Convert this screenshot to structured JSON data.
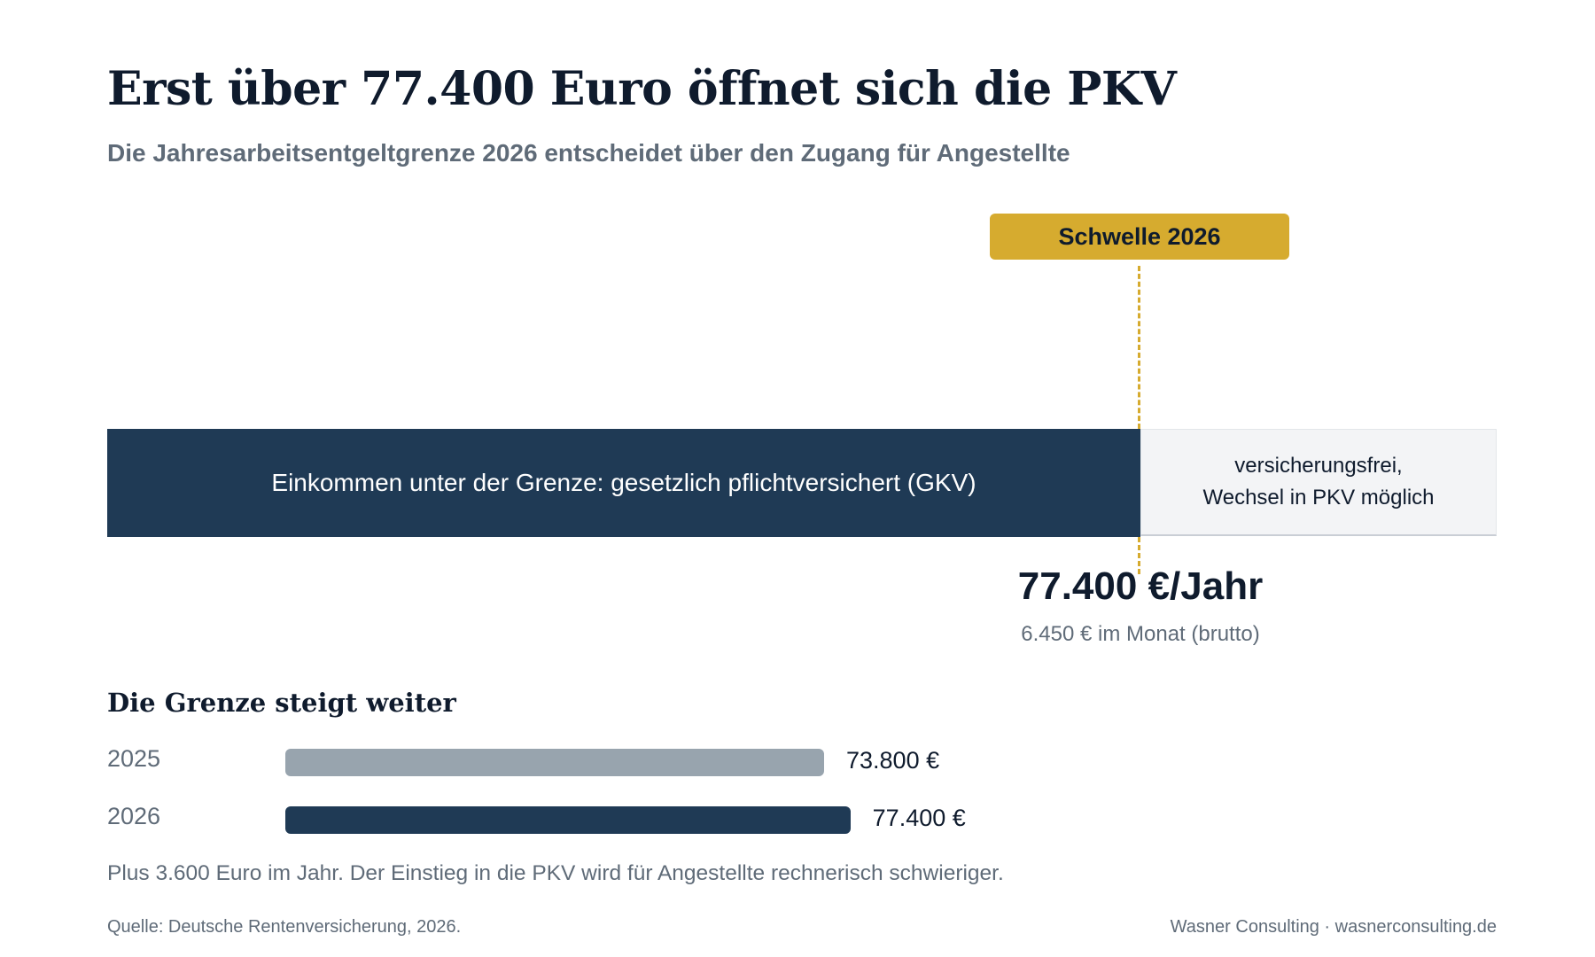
{
  "header": {
    "title": "Erst über 77.400 Euro öffnet sich die PKV",
    "subtitle": "Die Jahresarbeitsentgeltgrenze 2026 entscheidet über den Zugang für Angestellte"
  },
  "threshold": {
    "badge": "Schwelle 2026",
    "segment_below": "Einkommen unter der Grenze: gesetzlich pflichtversichert (GKV)",
    "segment_above_line1": "versicherungsfrei,",
    "segment_above_line2": "Wechsel in PKV möglich",
    "annual": "77.400 €/Jahr",
    "monthly": "6.450 € im Monat (brutto)"
  },
  "history": {
    "heading": "Die Grenze steigt weiter",
    "summary": "Plus 3.600 Euro im Jahr. Der Einstieg in die PKV wird für Angestellte rechnerisch schwieriger."
  },
  "footer": {
    "source": "Quelle: Deutsche Rentenversicherung, 2026.",
    "brand": "Wasner Consulting · wasnerconsulting.de"
  },
  "colors": {
    "navy": "#1f3a55",
    "gray_bar": "#98a4ae",
    "gold": "#d6ab2f",
    "light_panel": "#f3f4f6"
  },
  "chart_data": {
    "type": "bar",
    "orientation": "horizontal",
    "title": "Die Grenze steigt weiter",
    "categories": [
      "2025",
      "2026"
    ],
    "values": [
      73800,
      77400
    ],
    "value_labels": [
      "73.800 €",
      "77.400 €"
    ],
    "colors": [
      "#98a4ae",
      "#1f3a55"
    ],
    "xlim": [
      0,
      100000
    ],
    "grid": false
  }
}
